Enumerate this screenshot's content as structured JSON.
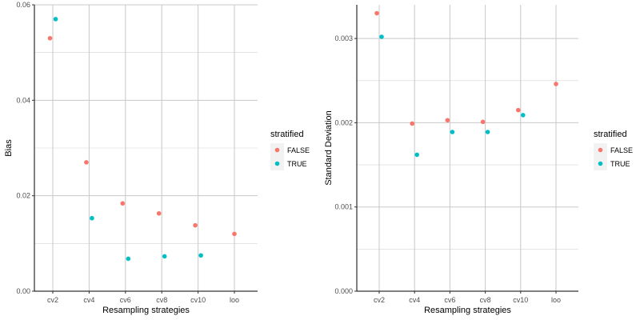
{
  "chart_data": [
    {
      "type": "scatter",
      "title": "",
      "xlabel": "Resampling strategies",
      "ylabel": "Bias",
      "categories": [
        "cv2",
        "cv4",
        "cv6",
        "cv8",
        "cv10",
        "loo"
      ],
      "ylim": [
        0,
        0.06
      ],
      "yticks": [
        0.0,
        0.02,
        0.04,
        0.06
      ],
      "ytick_labels": [
        "0.00",
        "0.02",
        "0.04",
        "0.06"
      ],
      "grid": true,
      "legend": {
        "title": "stratified",
        "position": "right"
      },
      "series": [
        {
          "name": "FALSE",
          "color": "#F8766D",
          "values": [
            0.053,
            0.027,
            0.0184,
            0.0163,
            0.0138,
            0.012
          ]
        },
        {
          "name": "TRUE",
          "color": "#00BFC4",
          "values": [
            0.057,
            0.0153,
            0.0068,
            0.0073,
            0.0075,
            null
          ]
        }
      ]
    },
    {
      "type": "scatter",
      "title": "",
      "xlabel": "Resampling strategies",
      "ylabel": "Standard Deviation",
      "categories": [
        "cv2",
        "cv4",
        "cv6",
        "cv8",
        "cv10",
        "loo"
      ],
      "ylim": [
        0,
        0.0034
      ],
      "yticks": [
        0.0,
        0.001,
        0.002,
        0.003
      ],
      "ytick_labels": [
        "0.000",
        "0.001",
        "0.002",
        "0.003"
      ],
      "grid": true,
      "legend": {
        "title": "stratified",
        "position": "right"
      },
      "series": [
        {
          "name": "FALSE",
          "color": "#F8766D",
          "values": [
            0.0033,
            0.00199,
            0.00203,
            0.00201,
            0.00215,
            0.00246
          ]
        },
        {
          "name": "TRUE",
          "color": "#00BFC4",
          "values": [
            0.00302,
            0.00162,
            0.00189,
            0.00189,
            0.00209,
            null
          ]
        }
      ]
    }
  ]
}
